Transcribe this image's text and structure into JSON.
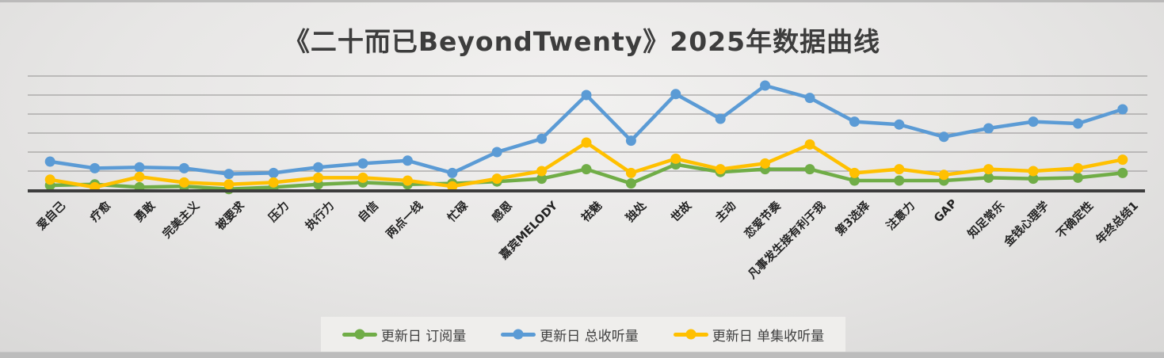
{
  "chart_data": {
    "type": "line",
    "title": "《二十而已BeyondTwenty》2025年数据曲线",
    "categories": [
      "爱自己",
      "疗愈",
      "勇敢",
      "完美主义",
      "被要求",
      "压力",
      "执行力",
      "自信",
      "两点一线",
      "忙碌",
      "感恩",
      "嘉宾MELODY",
      "祛魅",
      "独处",
      "世故",
      "主动",
      "恋爱节奏",
      "凡事发生接有利于我",
      "第3选择",
      "注意力",
      "GAP",
      "知足常乐",
      "金钱心理学",
      "不确定性",
      "年终总结1"
    ],
    "series": [
      {
        "name": "更新日 订阅量",
        "color": "#70AD47",
        "values": [
          2.5,
          3,
          1.5,
          2,
          0.5,
          1.5,
          3,
          4,
          3,
          3.5,
          4.5,
          6,
          11,
          3.5,
          13.5,
          9.5,
          11,
          11,
          5,
          5,
          5,
          6.5,
          6,
          6.5,
          9
        ]
      },
      {
        "name": "更新日 总收听量",
        "color": "#5B9BD5",
        "values": [
          15,
          11.5,
          12,
          11.5,
          8.5,
          9,
          12,
          14,
          15.5,
          9,
          20,
          27,
          50,
          26,
          50.5,
          37.5,
          55,
          48.5,
          36,
          34.5,
          28,
          32.5,
          36,
          35,
          42.5
        ]
      },
      {
        "name": "更新日 单集收听量",
        "color": "#FFC000",
        "values": [
          5.5,
          1.5,
          7,
          4,
          3,
          4,
          6.5,
          6.5,
          5,
          2,
          6,
          10,
          25,
          9,
          16.5,
          11,
          14,
          24,
          9,
          11,
          8,
          11,
          10,
          11.5,
          16
        ]
      }
    ],
    "y_axis": {
      "labels_visible": false,
      "grid": true,
      "gridline_step": 10,
      "ylim": [
        0,
        62
      ],
      "units_note": "y-axis unlabeled; values estimated in gridline units (1 gridline = 10)"
    },
    "x_axis": {
      "label_rotation_deg": 45
    },
    "legend": {
      "position": "bottom"
    },
    "colors": {
      "axis": "#3d3d3d",
      "gridline": "#a2a1a0",
      "title": "#3d3d3d",
      "legend_bg": "#efeeec"
    }
  }
}
